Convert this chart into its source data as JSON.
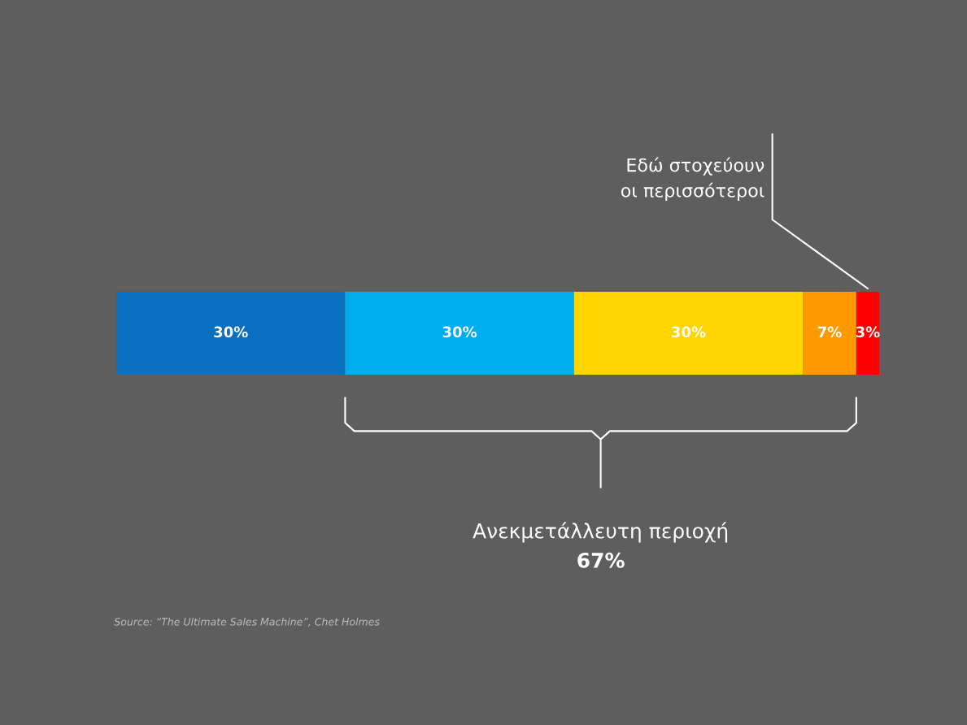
{
  "chart_data": {
    "type": "bar",
    "orientation": "horizontal",
    "stacked": true,
    "legend": false,
    "categories": [
      null
    ],
    "series": [
      {
        "color": "#0b6fc0",
        "values": [
          30
        ],
        "value_labels": [
          "30%"
        ]
      },
      {
        "color": "#00adee",
        "values": [
          30
        ],
        "value_labels": [
          "30%"
        ]
      },
      {
        "color": "#ffd500",
        "values": [
          30
        ],
        "value_labels": [
          "30%"
        ]
      },
      {
        "color": "#ff9900",
        "values": [
          7
        ],
        "value_labels": [
          "7%"
        ]
      },
      {
        "color": "#ff0000",
        "values": [
          3
        ],
        "value_labels": [
          "3%"
        ]
      }
    ],
    "annotations": [
      "Εδώ στοχεύουν οι περισσότεροι",
      "Ανεκμετάλλευτη περιοχή",
      "67%",
      "Source: “The Ultimate Sales Machine”, Chet Holmes"
    ]
  }
}
